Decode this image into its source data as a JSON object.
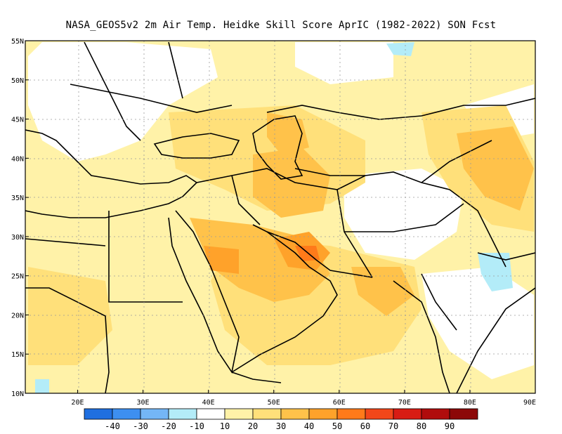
{
  "title": "NASA_GEOS5v2  2m Air Temp. Heidke Skill Score AprIC (1982-2022) SON Fcst",
  "map": {
    "lat_labels": [
      "10N",
      "15N",
      "20N",
      "25N",
      "30N",
      "35N",
      "40N",
      "45N",
      "50N",
      "55N"
    ],
    "lon_labels": [
      "20E",
      "30E",
      "40E",
      "50E",
      "60E",
      "70E",
      "80E",
      "90E"
    ],
    "lon_range": [
      12,
      90
    ],
    "lat_range": [
      10,
      55
    ]
  },
  "colorbar": {
    "labels": [
      "-40",
      "-30",
      "-20",
      "-10",
      "10",
      "20",
      "30",
      "40",
      "50",
      "60",
      "70",
      "80",
      "90"
    ],
    "colors": [
      "#1f6fe0",
      "#3d8ff0",
      "#74b6f6",
      "#b3ecf8",
      "#ffffff",
      "#fff2a8",
      "#ffe07a",
      "#ffc24a",
      "#ffa22a",
      "#ff7a1a",
      "#f2471a",
      "#d81c14",
      "#b00c0c",
      "#8c0808"
    ]
  }
}
